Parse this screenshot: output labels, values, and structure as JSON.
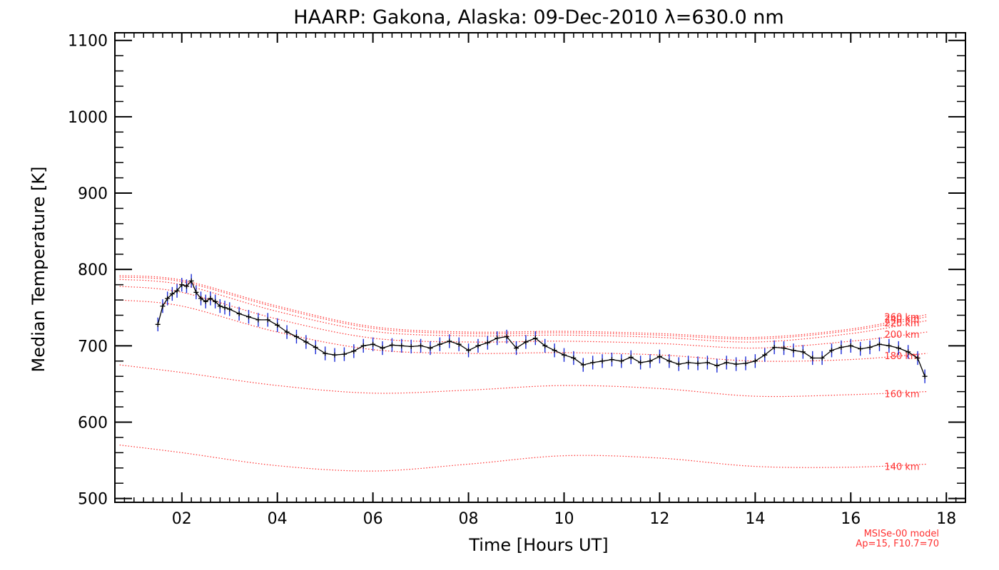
{
  "chart_data": {
    "type": "line",
    "title": "HAARP: Gakona,  Alaska: 09-Dec-2010 λ=630.0 nm",
    "xlabel": "Time [Hours UT]",
    "ylabel": "Median Temperature [K]",
    "xlim": [
      0.6,
      18.4
    ],
    "ylim": [
      495,
      1110
    ],
    "x_ticks": [
      2,
      4,
      6,
      8,
      10,
      12,
      14,
      16,
      18
    ],
    "x_tick_labels": [
      "02",
      "04",
      "06",
      "08",
      "10",
      "12",
      "14",
      "16",
      "18"
    ],
    "y_ticks": [
      500,
      600,
      700,
      800,
      900,
      1000,
      1100
    ],
    "y_tick_labels": [
      "500",
      "600",
      "700",
      "800",
      "900",
      "1000",
      "1100"
    ],
    "grid": false,
    "measured_series": {
      "name": "Median Temperature",
      "line_color": "#000000",
      "error_bar_color": "#1a2bd6",
      "x": [
        1.5,
        1.6,
        1.7,
        1.8,
        1.9,
        2.0,
        2.1,
        2.2,
        2.3,
        2.4,
        2.5,
        2.6,
        2.7,
        2.8,
        2.9,
        3.0,
        3.2,
        3.4,
        3.6,
        3.8,
        4.0,
        4.2,
        4.4,
        4.6,
        4.8,
        5.0,
        5.2,
        5.4,
        5.6,
        5.8,
        6.0,
        6.2,
        6.4,
        6.6,
        6.8,
        7.0,
        7.2,
        7.4,
        7.6,
        7.8,
        8.0,
        8.2,
        8.4,
        8.6,
        8.8,
        9.0,
        9.2,
        9.4,
        9.6,
        9.8,
        10.0,
        10.2,
        10.4,
        10.6,
        10.8,
        11.0,
        11.2,
        11.4,
        11.6,
        11.8,
        12.0,
        12.2,
        12.4,
        12.6,
        12.8,
        13.0,
        13.2,
        13.4,
        13.6,
        13.8,
        14.0,
        14.2,
        14.4,
        14.6,
        14.8,
        15.0,
        15.2,
        15.4,
        15.6,
        15.8,
        16.0,
        16.2,
        16.4,
        16.6,
        16.8,
        17.0,
        17.2,
        17.4,
        17.55
      ],
      "y": [
        728,
        752,
        762,
        768,
        772,
        780,
        778,
        785,
        770,
        762,
        758,
        762,
        758,
        752,
        750,
        748,
        742,
        738,
        734,
        734,
        727,
        718,
        712,
        705,
        698,
        690,
        688,
        689,
        693,
        700,
        702,
        697,
        701,
        700,
        699,
        700,
        697,
        702,
        706,
        702,
        694,
        700,
        704,
        710,
        712,
        697,
        705,
        710,
        700,
        694,
        688,
        684,
        675,
        678,
        680,
        682,
        680,
        685,
        678,
        680,
        686,
        680,
        676,
        678,
        677,
        678,
        674,
        678,
        676,
        677,
        680,
        688,
        698,
        697,
        694,
        692,
        684,
        684,
        694,
        698,
        700,
        696,
        698,
        702,
        700,
        697,
        692,
        684,
        660
      ],
      "error": 9
    },
    "model_series": [
      {
        "name": "260 km",
        "x": [
          0.7,
          2,
          4,
          6,
          8,
          10,
          12,
          14,
          16,
          17.6
        ],
        "y": [
          792,
          786,
          752,
          725,
          718,
          719,
          716,
          711,
          722,
          741
        ]
      },
      {
        "name": "240 km",
        "x": [
          0.7,
          2,
          4,
          6,
          8,
          10,
          12,
          14,
          16,
          17.6
        ],
        "y": [
          790,
          784,
          750,
          723,
          716,
          717,
          714,
          709,
          720,
          738
        ]
      },
      {
        "name": "220 km",
        "x": [
          0.7,
          2,
          4,
          6,
          8,
          10,
          12,
          14,
          16,
          17.6
        ],
        "y": [
          787,
          780,
          745,
          719,
          713,
          714,
          711,
          705,
          716,
          733
        ]
      },
      {
        "name": "200 km",
        "x": [
          0.7,
          2,
          4,
          6,
          8,
          10,
          12,
          14,
          16,
          17.6
        ],
        "y": [
          778,
          770,
          735,
          710,
          705,
          706,
          703,
          697,
          706,
          718
        ]
      },
      {
        "name": "180 km",
        "x": [
          0.7,
          2,
          4,
          6,
          8,
          10,
          12,
          14,
          16,
          17.6
        ],
        "y": [
          760,
          752,
          718,
          695,
          690,
          691,
          688,
          680,
          682,
          690
        ]
      },
      {
        "name": "160 km",
        "x": [
          0.7,
          2,
          4,
          6,
          8,
          10,
          12,
          14,
          16,
          17.6
        ],
        "y": [
          675,
          665,
          648,
          638,
          642,
          648,
          644,
          634,
          636,
          640
        ]
      },
      {
        "name": "140 km",
        "x": [
          0.7,
          2,
          4,
          6,
          8,
          10,
          12,
          14,
          16,
          17.6
        ],
        "y": [
          570,
          560,
          543,
          536,
          545,
          556,
          553,
          542,
          541,
          545
        ]
      }
    ],
    "model_color": "#ff3030",
    "annotations": [
      "MSISe-00 model",
      "Ap=15, F10.7=70"
    ]
  }
}
